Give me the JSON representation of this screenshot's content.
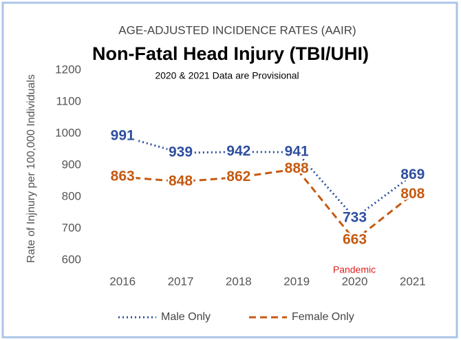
{
  "chart_data": {
    "type": "line",
    "supertitle": "AGE-ADJUSTED INCIDENCE RATES (AAIR)",
    "title": "Non-Fatal Head Injury (TBI/UHI)",
    "subtitle": "2020 & 2021 Data are Provisional",
    "y_label": "Rate of Injnury per 100,000 Individuals",
    "annotation": "Pandemic",
    "categories": [
      "2016",
      "2017",
      "2018",
      "2019",
      "2020",
      "2021"
    ],
    "series": [
      {
        "name": "Male Only",
        "color": "#2f4f9e",
        "dash": "dotted",
        "values": [
          991,
          939,
          942,
          941,
          733,
          869
        ]
      },
      {
        "name": "Female Only",
        "color": "#c55a11",
        "dash": "dashed",
        "values": [
          863,
          848,
          862,
          888,
          663,
          808
        ]
      }
    ],
    "ylim": [
      600,
      1200
    ],
    "yticks": [
      600,
      700,
      800,
      900,
      1000,
      1100,
      1200
    ]
  }
}
